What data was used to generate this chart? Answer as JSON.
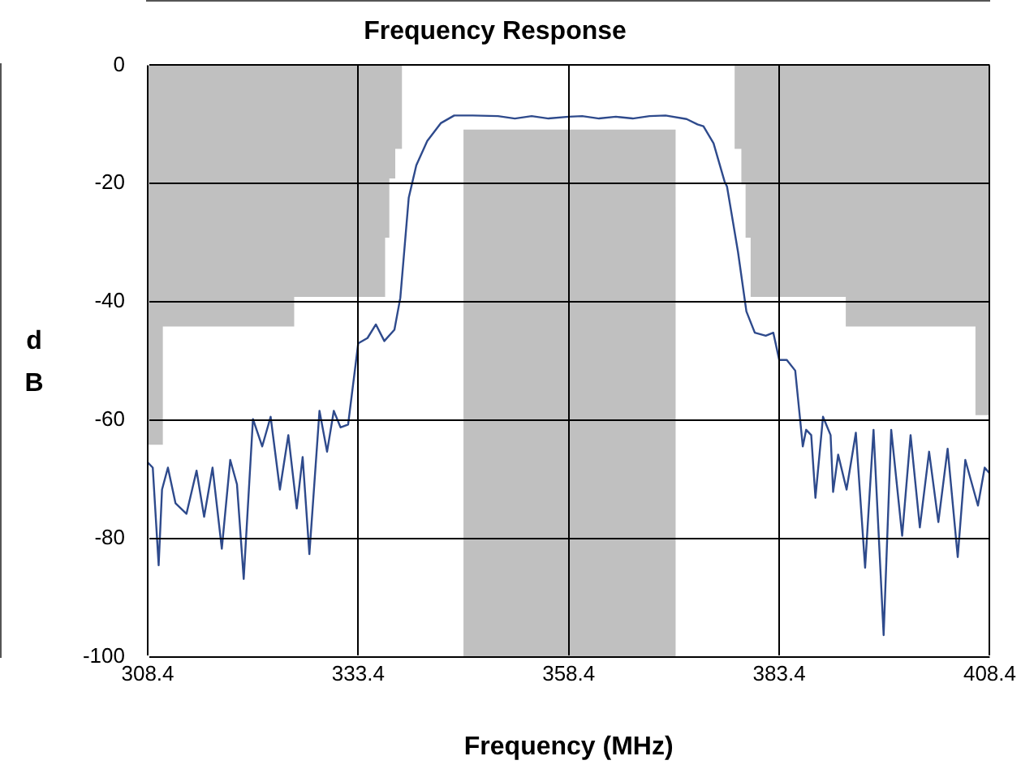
{
  "chart_data": {
    "type": "line",
    "title": "Frequency Response",
    "xlabel": "Frequency (MHz)",
    "ylabel": "dB",
    "xlim": [
      308.4,
      408.4
    ],
    "xticks": [
      308.4,
      333.4,
      358.4,
      383.4,
      408.4
    ],
    "ylim": [
      -100,
      0
    ],
    "yticks": [
      -100,
      -80,
      -60,
      -40,
      -20,
      0
    ],
    "grid": true,
    "legend": false,
    "marker": "none",
    "line_style": "solid",
    "series": [
      {
        "type": "area",
        "color": "#c0c0c0",
        "x": [
          308.4,
          308.4,
          310.1,
          310.1,
          325.7,
          325.7,
          336.5,
          336.5,
          337.0,
          337.0,
          337.7,
          337.7,
          338.5,
          338.5
        ],
        "values": [
          0,
          -64,
          -64,
          -44,
          -44,
          -39,
          -39,
          -29,
          -29,
          -19,
          -19,
          -14,
          -14,
          0
        ]
      },
      {
        "type": "area",
        "color": "#c0c0c0",
        "x": [
          378.2,
          378.2,
          379.0,
          379.0,
          379.5,
          379.5,
          380.1,
          380.1,
          391.4,
          391.4,
          406.8,
          406.8,
          408.4,
          408.4
        ],
        "values": [
          0,
          -14,
          -14,
          -20,
          -20,
          -29,
          -29,
          -39,
          -39,
          -44,
          -44,
          -59,
          -59,
          0
        ]
      },
      {
        "type": "area",
        "color": "#c0c0c0",
        "x": [
          346.0,
          346.0,
          358.4,
          371.0,
          371.0
        ],
        "values": [
          -100,
          -11,
          -11,
          -11,
          -100
        ]
      },
      {
        "type": "line",
        "color": "#2e4a8c",
        "x": [
          308.4,
          309.0,
          309.7,
          310.1,
          310.8,
          311.7,
          313.0,
          314.2,
          315.1,
          316.1,
          317.2,
          318.2,
          319.0,
          319.8,
          320.9,
          322.0,
          323.0,
          324.1,
          325.1,
          326.1,
          326.8,
          327.6,
          328.8,
          329.7,
          330.5,
          331.3,
          332.2,
          333.4,
          334.5,
          335.5,
          336.5,
          337.7,
          338.4,
          339.4,
          340.3,
          341.6,
          343.2,
          344.8,
          347.0,
          350.0,
          352.0,
          354.0,
          356.0,
          358.4,
          360.0,
          362.0,
          364.0,
          366.0,
          368.0,
          369.9,
          372.4,
          373.7,
          374.4,
          375.6,
          376.9,
          377.2,
          378.5,
          379.5,
          380.5,
          381.8,
          382.7,
          383.4,
          384.3,
          385.3,
          386.2,
          386.6,
          387.2,
          387.7,
          388.6,
          389.5,
          389.8,
          390.4,
          391.4,
          392.5,
          393.6,
          394.6,
          395.8,
          396.7,
          398.0,
          399.0,
          400.1,
          401.2,
          402.3,
          403.4,
          404.6,
          405.5,
          407.0,
          407.8,
          408.4
        ],
        "values": [
          -67.1,
          -68,
          -84.5,
          -71.7,
          -68,
          -74,
          -75.8,
          -68.5,
          -76.3,
          -68,
          -81.7,
          -66.7,
          -70.8,
          -86.8,
          -59.8,
          -64.4,
          -59.4,
          -71.7,
          -62.5,
          -74.9,
          -66.2,
          -82.6,
          -58.4,
          -65.3,
          -58.4,
          -61.2,
          -60.7,
          -47.0,
          -46.1,
          -43.8,
          -46.6,
          -44.7,
          -39.3,
          -22.4,
          -16.9,
          -12.8,
          -9.8,
          -8.5,
          -8.5,
          -8.6,
          -9.0,
          -8.6,
          -9.0,
          -8.7,
          -8.6,
          -9.0,
          -8.7,
          -9.0,
          -8.6,
          -8.5,
          -9.1,
          -10.0,
          -10.3,
          -13.2,
          -19.6,
          -20.5,
          -31.5,
          -41.6,
          -45.2,
          -45.7,
          -45.2,
          -49.8,
          -49.8,
          -51.6,
          -64.4,
          -61.6,
          -62.5,
          -73.1,
          -59.4,
          -62.5,
          -72.1,
          -65.8,
          -71.7,
          -62.1,
          -84.9,
          -61.6,
          -96.3,
          -61.6,
          -79.5,
          -62.5,
          -78.1,
          -65.3,
          -77.2,
          -64.8,
          -83.1,
          -66.7,
          -74.4,
          -68,
          -69
        ]
      }
    ]
  }
}
